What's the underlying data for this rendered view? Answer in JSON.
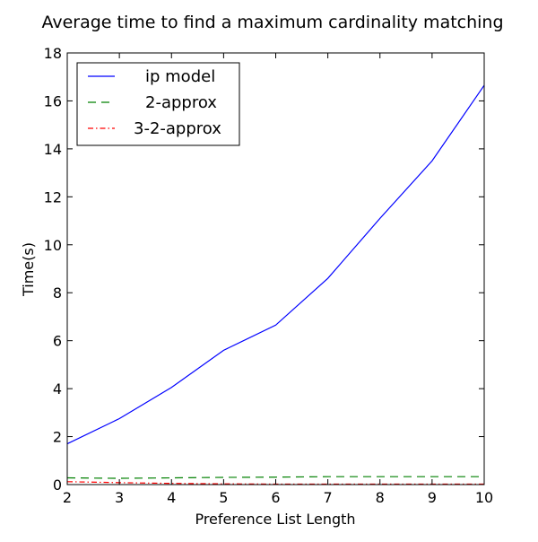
{
  "chart_data": {
    "type": "line",
    "title": "Average time to find a maximum cardinality matching",
    "xlabel": "Preference List Length",
    "ylabel": "Time(s)",
    "xlim": [
      2,
      10
    ],
    "ylim": [
      0,
      18
    ],
    "x": [
      2,
      3,
      4,
      5,
      6,
      7,
      8,
      9,
      10
    ],
    "xticks": [
      "2",
      "3",
      "4",
      "5",
      "6",
      "7",
      "8",
      "9",
      "10"
    ],
    "yticks": [
      "0",
      "2",
      "4",
      "6",
      "8",
      "10",
      "12",
      "14",
      "16",
      "18"
    ],
    "grid": false,
    "legend_position": "top-left",
    "series": [
      {
        "name": "ip model",
        "color": "#0000ff",
        "style": "solid",
        "values": [
          1.7,
          2.75,
          4.05,
          5.6,
          6.65,
          8.6,
          11.1,
          13.5,
          16.65
        ]
      },
      {
        "name": "2-approx",
        "color": "#008000",
        "style": "dashed",
        "values": [
          0.28,
          0.26,
          0.28,
          0.3,
          0.31,
          0.33,
          0.33,
          0.33,
          0.33
        ]
      },
      {
        "name": "3-2-approx",
        "color": "#ff0000",
        "style": "dashdot",
        "values": [
          0.12,
          0.08,
          0.05,
          0.03,
          0.02,
          0.02,
          0.02,
          0.02,
          0.02
        ]
      }
    ]
  }
}
